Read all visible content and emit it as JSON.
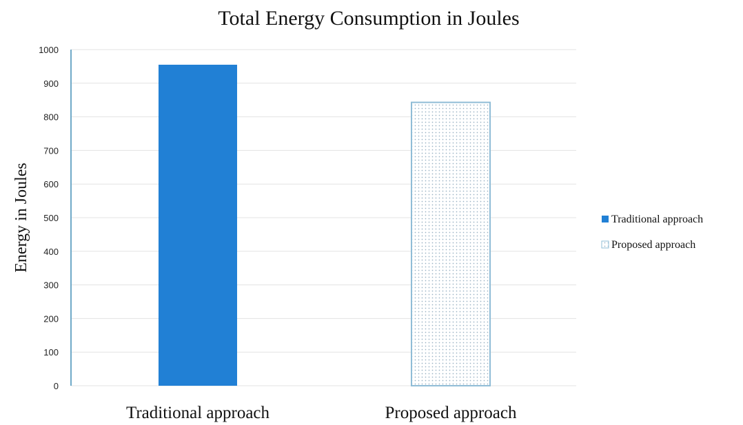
{
  "chart_data": {
    "type": "bar",
    "title": "Total Energy Consumption in Joules",
    "xlabel": "",
    "ylabel": "Energy  in Joules",
    "categories": [
      "Traditional approach",
      "Proposed approach"
    ],
    "values": [
      955,
      843
    ],
    "ylim": [
      0,
      1000
    ],
    "yticks": [
      0,
      100,
      200,
      300,
      400,
      500,
      600,
      700,
      800,
      900,
      1000
    ],
    "grid": true,
    "legend_position": "right",
    "legend": [
      {
        "label": "Traditional approach",
        "style": "solid"
      },
      {
        "label": "Proposed approach",
        "style": "dotted"
      }
    ],
    "colors": {
      "traditional": "#2180d5",
      "proposed_border": "#8fbcd6",
      "proposed_dots": "#9bb3c4",
      "axis": "#6fa9c8",
      "grid": "#e3e3e3"
    }
  }
}
